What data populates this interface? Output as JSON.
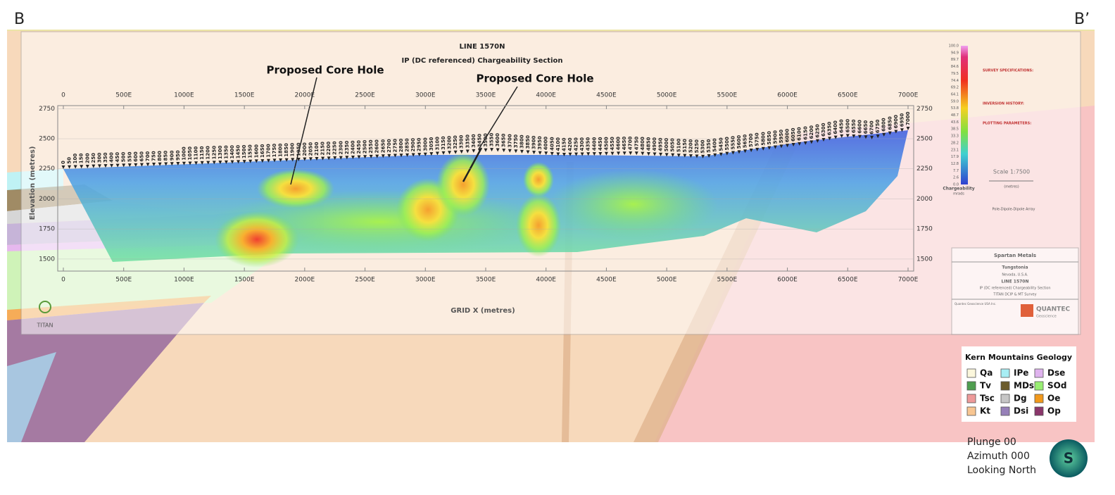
{
  "corner_labels": {
    "left": "B",
    "right": "B’"
  },
  "section": {
    "title": "LINE 1570N",
    "subtitle": "IP (DC referenced) Chargeability Section",
    "annotations": [
      "Proposed Core Hole",
      "Proposed Core Hole"
    ],
    "x_label": "GRID X (metres)",
    "y_label": "Elevation (metres)",
    "xlim": [
      0,
      7000
    ],
    "ylim": [
      1400,
      2775
    ],
    "xticks": [
      0,
      {
        "value": 500,
        "label": "500E"
      },
      {
        "value": 1000,
        "label": "1000E"
      },
      {
        "value": 1500,
        "label": "1500E"
      },
      {
        "value": 2000,
        "label": "2000E"
      },
      {
        "value": 2500,
        "label": "2500E"
      },
      {
        "value": 3000,
        "label": "3000E"
      },
      {
        "value": 3500,
        "label": "3500E"
      },
      {
        "value": 4000,
        "label": "4000E"
      },
      {
        "value": 4500,
        "label": "4500E"
      },
      {
        "value": 5000,
        "label": "5000E"
      },
      {
        "value": 5500,
        "label": "5500E"
      },
      {
        "value": 6000,
        "label": "6000E"
      },
      {
        "value": 6500,
        "label": "6500E"
      },
      {
        "value": 7000,
        "label": "7000E"
      }
    ],
    "yticks": [
      1500,
      1750,
      2000,
      2250,
      2500,
      2750
    ],
    "stations": [
      0,
      50,
      100,
      150,
      200,
      250,
      300,
      350,
      400,
      450,
      500,
      550,
      600,
      650,
      700,
      750,
      800,
      850,
      900,
      950,
      1000,
      1050,
      1100,
      1150,
      1200,
      1250,
      1300,
      1350,
      1400,
      1450,
      1500,
      1550,
      1600,
      1650,
      1700,
      1750,
      1800,
      1850,
      1900,
      1950,
      2000,
      2050,
      2100,
      2150,
      2200,
      2250,
      2300,
      2350,
      2400,
      2450,
      2500,
      2550,
      2600,
      2650,
      2700,
      2750,
      2800,
      2850,
      2900,
      2950,
      3000,
      3050,
      3100,
      3150,
      3200,
      3250,
      3300,
      3350,
      3400,
      3450,
      3500,
      3550,
      3600,
      3650,
      3700,
      3750,
      3800,
      3850,
      3900,
      3950,
      4000,
      4050,
      4100,
      4150,
      4200,
      4250,
      4300,
      4350,
      4400,
      4450,
      4500,
      4550,
      4600,
      4650,
      4700,
      4750,
      4800,
      4850,
      4900,
      4950,
      5000,
      5050,
      5100,
      5150,
      5200,
      5250,
      5300,
      5350,
      5400,
      5450,
      5500,
      5550,
      5600,
      5650,
      5700,
      5750,
      5800,
      5850,
      5900,
      5950,
      6000,
      6050,
      6100,
      6150,
      6200,
      6250,
      6300,
      6350,
      6400,
      6450,
      6500,
      6550,
      6600,
      6650,
      6700,
      6750,
      6800,
      6850,
      6900,
      6950,
      7000
    ]
  },
  "colorbar": {
    "title": "Chargeability",
    "unit": "mrads",
    "values": [
      100.0,
      94.9,
      89.7,
      84.6,
      79.5,
      74.4,
      69.2,
      64.1,
      59.0,
      53.8,
      48.7,
      43.6,
      38.5,
      33.3,
      28.2,
      23.1,
      17.9,
      12.8,
      7.7,
      2.6,
      0.0
    ],
    "value_labels": [
      "100.0",
      "94.9",
      "89.7",
      "84.6",
      "79.5",
      "74.4",
      "69.2",
      "64.1",
      "59.0",
      "53.8",
      "48.7",
      "43.6",
      "38.5",
      "33.3",
      "28.2",
      "23.1",
      "17.9",
      "12.8",
      "7.7",
      "2.6",
      "0.0"
    ]
  },
  "notes": {
    "survey": "SURVEY SPECIFICATIONS:",
    "inversion": "INVERSION HISTORY:",
    "plotting": "PLOTTING PARAMETERS:",
    "scale": "Scale 1:7500",
    "scale_unit": "(metres)",
    "array": "Pole-Dipole-Dipole Array"
  },
  "title_block": {
    "company": "Spartan Metals",
    "project": "Tungstonia",
    "location": "Nevada, U.S.A.",
    "line": "LINE 1570N",
    "section": "IP (DC referenced) Chargeability Section",
    "survey": "TITAN DCIP & MT Survey",
    "contractor": "Quantec Geoscience USA Inc.",
    "logo": "QUANTEC",
    "logo_sub": "Geoscience"
  },
  "titan_logo": "TITAN",
  "legend": {
    "title": "Kern Mountains Geology",
    "items": [
      {
        "name": "Qa",
        "color": "#fbf7dc"
      },
      {
        "name": "IPe",
        "color": "#a8eef4"
      },
      {
        "name": "Dse",
        "color": "#dfb3ee"
      },
      {
        "name": "Tv",
        "color": "#4f9e4f"
      },
      {
        "name": "MDs",
        "color": "#6b5b2c"
      },
      {
        "name": "SOd",
        "color": "#98ee72"
      },
      {
        "name": "Tsc",
        "color": "#ee9a9a"
      },
      {
        "name": "Dg",
        "color": "#c6c6c6"
      },
      {
        "name": "Oe",
        "color": "#f2991b"
      },
      {
        "name": "Kt",
        "color": "#f8c692"
      },
      {
        "name": "Dsi",
        "color": "#9680b8"
      },
      {
        "name": "Op",
        "color": "#8a366b"
      }
    ]
  },
  "view": [
    "Plunge 00",
    "Azimuth 000",
    "Looking North"
  ],
  "logo_letter": "S"
}
